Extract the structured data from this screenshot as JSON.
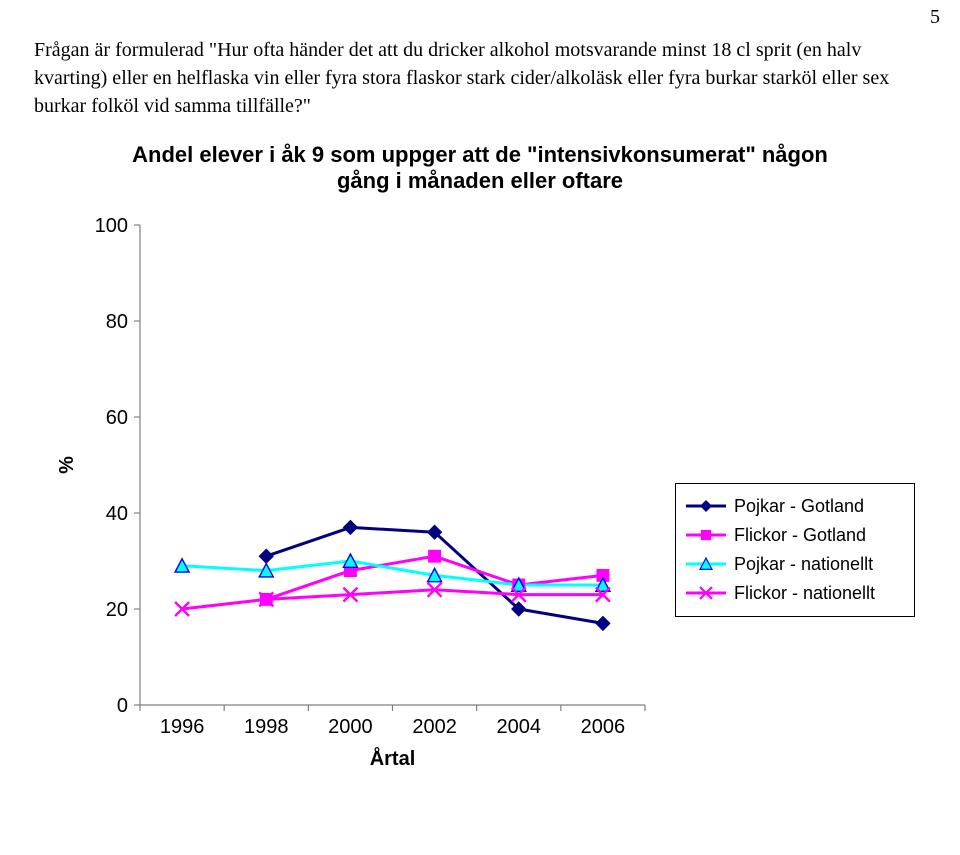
{
  "page_number": "5",
  "question_text": "Frågan är formulerad \"Hur ofta händer det att du dricker alkohol motsvarande minst 18 cl sprit (en halv kvarting) eller en helflaska vin eller fyra stora flaskor stark cider/alkoläsk eller fyra burkar starköl eller sex burkar folköl vid samma tillfälle?\"",
  "chart": {
    "type": "line",
    "title": "Andel elever i åk 9 som uppger att de \"intensivkonsumerat\" någon gång i månaden eller oftare",
    "x_title": "Årtal",
    "y_title": "%",
    "x_categories": [
      "1996",
      "1998",
      "2000",
      "2002",
      "2004",
      "2006"
    ],
    "ylim": [
      0,
      100
    ],
    "ytick_step": 20,
    "y_ticks": [
      0,
      20,
      40,
      60,
      80,
      100
    ],
    "background_color": "#ffffff",
    "axis_color": "#808080",
    "tick_color": "#808080",
    "tick_font_size": 20,
    "title_font_size": 22,
    "line_width": 3,
    "marker_size": 10,
    "series": [
      {
        "name": "Pojkar - Gotland",
        "color": "#000080",
        "marker": "diamond",
        "values": [
          null,
          31,
          37,
          36,
          20,
          17
        ]
      },
      {
        "name": "Flickor - Gotland",
        "color": "#ff00ff",
        "marker": "square",
        "values": [
          null,
          22,
          28,
          31,
          25,
          27
        ]
      },
      {
        "name": "Pojkar - nationellt",
        "color": "#00ffff",
        "marker": "triangle",
        "border": "#0000ff",
        "values": [
          29,
          28,
          30,
          27,
          25,
          25
        ]
      },
      {
        "name": "Flickor - nationellt",
        "color": "#ff00ff",
        "marker": "x",
        "values": [
          20,
          22,
          23,
          24,
          23,
          23
        ]
      }
    ],
    "legend": {
      "position": "right",
      "border_color": "#000000",
      "background": "#ffffff",
      "font_size": 18
    }
  }
}
